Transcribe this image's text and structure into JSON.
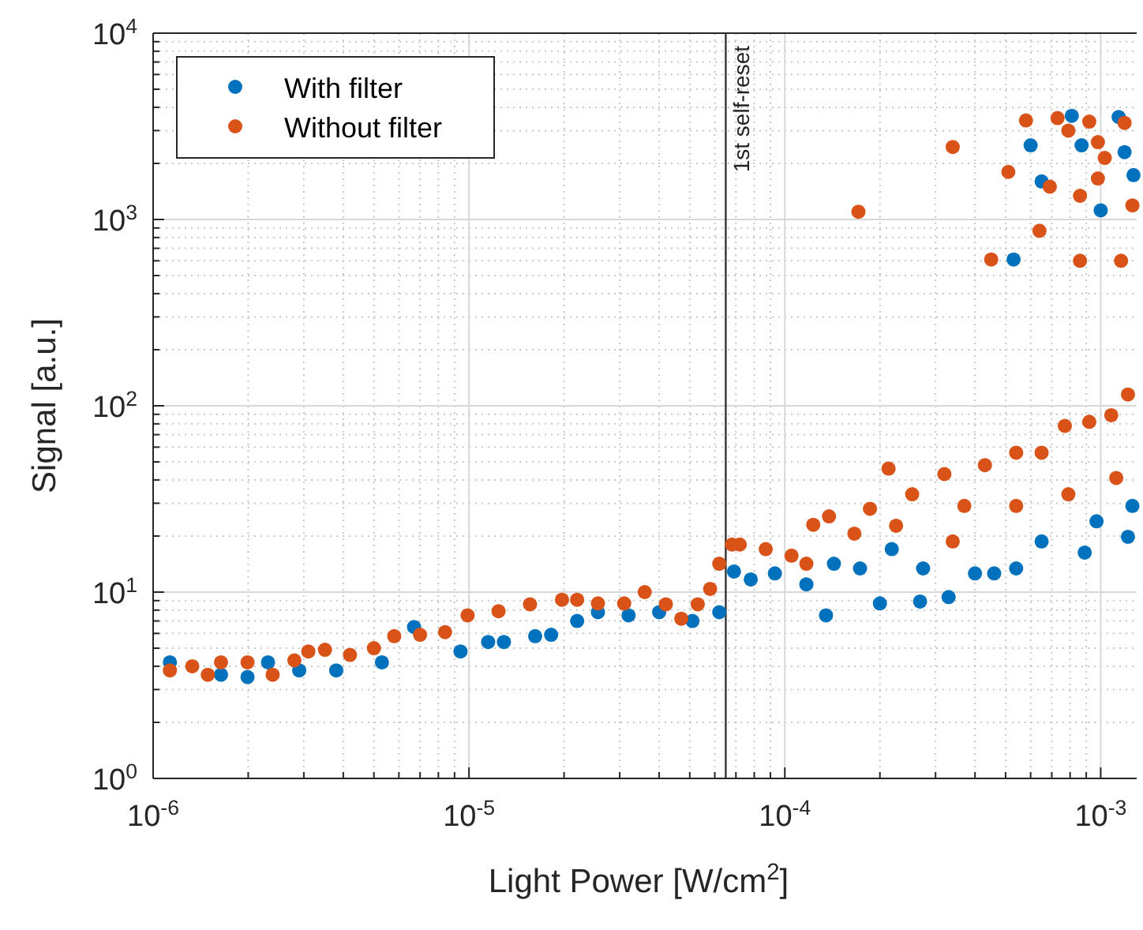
{
  "chart_data": {
    "type": "scatter",
    "xlabel": "Light Power [W/cm$^{2}$]",
    "ylabel": "Signal [a.u.]",
    "log": "xy",
    "grid": true,
    "legend": "top left",
    "marker": "circle",
    "xlim": [
      1e-06,
      0.0013
    ],
    "xticks": [
      {
        "value": 1e-06,
        "label": "10$^{-6}$"
      },
      {
        "value": 1e-05,
        "label": "10$^{-5}$"
      },
      {
        "value": 0.0001,
        "label": "10$^{-4}$"
      },
      {
        "value": 0.001,
        "label": "10$^{-3}$"
      }
    ],
    "ylim": [
      1,
      10000
    ],
    "yticks": [
      {
        "value": 1,
        "label": "10$^{0}$"
      },
      {
        "value": 10,
        "label": "10$^{1}$"
      },
      {
        "value": 100,
        "label": "10$^{2}$"
      },
      {
        "value": 1000,
        "label": "10$^{3}$"
      },
      {
        "value": 10000,
        "label": "10$^{4}$"
      }
    ],
    "ref_lines": [
      {
        "axis": "x",
        "value": 6.5e-05,
        "label": "1st self-reset",
        "color": "#333333"
      }
    ],
    "series": [
      {
        "name": "With filter",
        "color": "#0072bd",
        "x": [
          1.13e-06,
          1.64e-06,
          1.99e-06,
          2.31e-06,
          2.9e-06,
          3.8e-06,
          5.3e-06,
          6.7e-06,
          9.4e-06,
          1.15e-05,
          1.29e-05,
          1.62e-05,
          1.82e-05,
          2.2e-05,
          2.56e-05,
          3.2e-05,
          4e-05,
          5.1e-05,
          6.2e-05,
          6.9e-05,
          7.8e-05,
          9.3e-05,
          0.000117,
          0.000135,
          0.000143,
          0.000173,
          0.0002,
          0.000218,
          0.000268,
          0.000274,
          0.00033,
          0.0004,
          0.00046,
          0.00054,
          0.00065,
          0.00089,
          0.00097,
          0.00122,
          0.00126,
          0.0006,
          0.00065,
          0.00081,
          0.00087,
          0.001,
          0.00114,
          0.00119,
          0.00053,
          0.00127
        ],
        "values": [
          4.2,
          3.6,
          3.5,
          4.2,
          3.8,
          3.8,
          4.2,
          6.5,
          4.8,
          5.4,
          5.4,
          5.8,
          5.9,
          7.0,
          7.8,
          7.5,
          7.8,
          7.0,
          7.8,
          12.9,
          11.7,
          12.6,
          11.0,
          7.5,
          14.2,
          13.4,
          8.7,
          17,
          8.9,
          13.4,
          9.4,
          12.6,
          12.6,
          13.4,
          18.7,
          16.3,
          24,
          19.8,
          29,
          2500,
          1600,
          3600,
          2500,
          1120,
          3550,
          2300,
          610,
          1730
        ]
      },
      {
        "name": "Without filter",
        "color": "#d95319",
        "x": [
          1.13e-06,
          1.33e-06,
          1.49e-06,
          1.64e-06,
          1.99e-06,
          2.39e-06,
          2.8e-06,
          3.1e-06,
          3.5e-06,
          4.2e-06,
          5e-06,
          5.8e-06,
          7e-06,
          8.4e-06,
          9.9e-06,
          1.24e-05,
          1.56e-05,
          1.97e-05,
          2.2e-05,
          2.56e-05,
          3.1e-05,
          3.6e-05,
          4.2e-05,
          4.7e-05,
          5.3e-05,
          5.8e-05,
          6.2e-05,
          6.8e-05,
          7.2e-05,
          8.7e-05,
          0.000105,
          0.000117,
          0.000123,
          0.000138,
          0.000166,
          0.000186,
          0.000213,
          0.000225,
          0.000253,
          0.00032,
          0.00037,
          0.00043,
          0.00054,
          0.00065,
          0.00077,
          0.00092,
          0.00108,
          0.00122,
          0.00112,
          0.00079,
          0.00054,
          0.00034,
          0.000171,
          0.00034,
          0.00051,
          0.00058,
          0.00064,
          0.00045,
          0.00069,
          0.00073,
          0.00079,
          0.00086,
          0.00086,
          0.00092,
          0.00098,
          0.00098,
          0.00103,
          0.00116,
          0.00119,
          0.00126
        ],
        "values": [
          3.8,
          4.0,
          3.6,
          4.2,
          4.2,
          3.6,
          4.3,
          4.8,
          4.9,
          4.6,
          5.0,
          5.8,
          5.9,
          6.1,
          7.5,
          7.9,
          8.6,
          9.1,
          9.1,
          8.7,
          8.7,
          10,
          8.6,
          7.2,
          8.6,
          10.4,
          14.2,
          18,
          18,
          17,
          15.7,
          14.2,
          23,
          25.5,
          20.6,
          28,
          46,
          22.7,
          33.5,
          43,
          29,
          48,
          56,
          56,
          78,
          82,
          89,
          115,
          41,
          33.5,
          29,
          18.7,
          1100,
          2450,
          1800,
          3400,
          870,
          610,
          1500,
          3500,
          3000,
          1340,
          600,
          3350,
          2600,
          1660,
          2140,
          600,
          3300,
          1190
        ]
      }
    ]
  }
}
